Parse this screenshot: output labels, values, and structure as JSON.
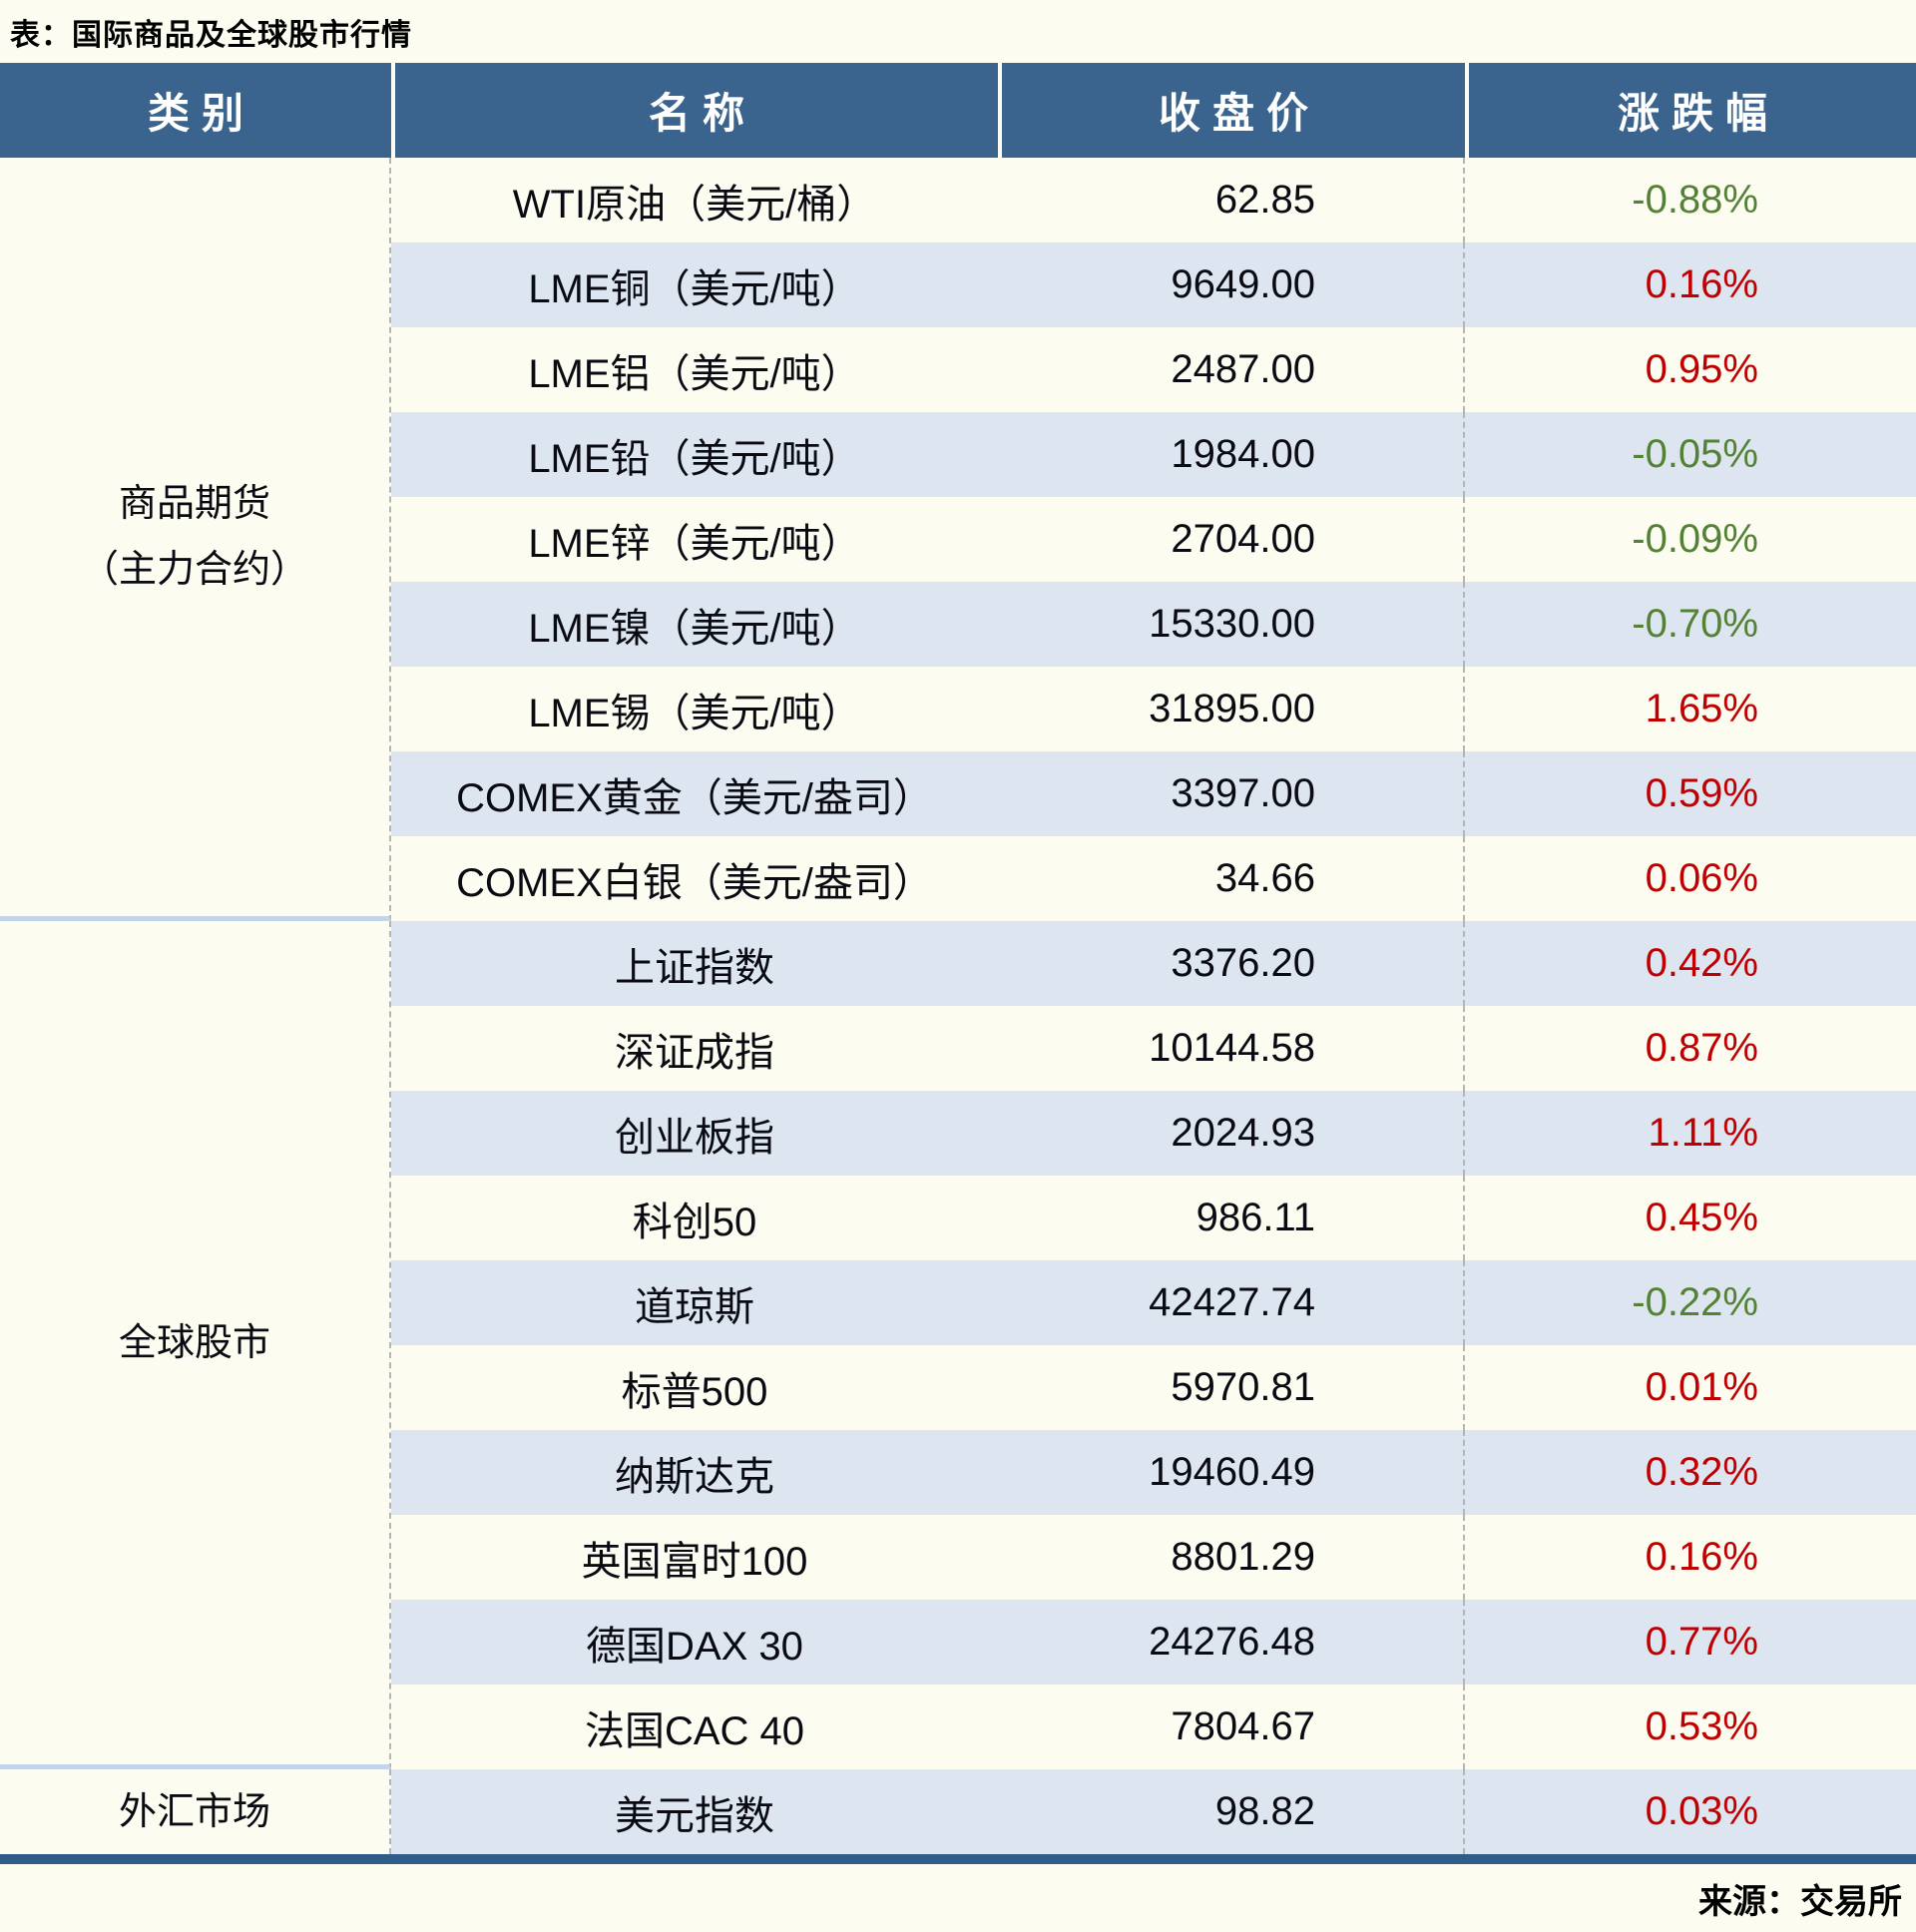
{
  "chart_data": {
    "type": "table",
    "title": "表：国际商品及全球股市行情",
    "columns": [
      "类别",
      "名称",
      "收盘价",
      "涨跌幅"
    ],
    "sections": [
      {
        "category_lines": [
          "商品期货",
          "（主力合约）"
        ],
        "rows": [
          {
            "name": "WTI原油（美元/桶）",
            "close": "62.85",
            "change": "-0.88%",
            "direction": "down"
          },
          {
            "name": "LME铜（美元/吨）",
            "close": "9649.00",
            "change": "0.16%",
            "direction": "up"
          },
          {
            "name": "LME铝（美元/吨）",
            "close": "2487.00",
            "change": "0.95%",
            "direction": "up"
          },
          {
            "name": "LME铅（美元/吨）",
            "close": "1984.00",
            "change": "-0.05%",
            "direction": "down"
          },
          {
            "name": "LME锌（美元/吨）",
            "close": "2704.00",
            "change": "-0.09%",
            "direction": "down"
          },
          {
            "name": "LME镍（美元/吨）",
            "close": "15330.00",
            "change": "-0.70%",
            "direction": "down"
          },
          {
            "name": "LME锡（美元/吨）",
            "close": "31895.00",
            "change": "1.65%",
            "direction": "up"
          },
          {
            "name": "COMEX黄金（美元/盎司）",
            "close": "3397.00",
            "change": "0.59%",
            "direction": "up"
          },
          {
            "name": "COMEX白银（美元/盎司）",
            "close": "34.66",
            "change": "0.06%",
            "direction": "up"
          }
        ]
      },
      {
        "category_lines": [
          "全球股市"
        ],
        "rows": [
          {
            "name": "上证指数",
            "close": "3376.20",
            "change": "0.42%",
            "direction": "up"
          },
          {
            "name": "深证成指",
            "close": "10144.58",
            "change": "0.87%",
            "direction": "up"
          },
          {
            "name": "创业板指",
            "close": "2024.93",
            "change": "1.11%",
            "direction": "up"
          },
          {
            "name": "科创50",
            "close": "986.11",
            "change": "0.45%",
            "direction": "up"
          },
          {
            "name": "道琼斯",
            "close": "42427.74",
            "change": "-0.22%",
            "direction": "down"
          },
          {
            "name": "标普500",
            "close": "5970.81",
            "change": "0.01%",
            "direction": "up"
          },
          {
            "name": "纳斯达克",
            "close": "19460.49",
            "change": "0.32%",
            "direction": "up"
          },
          {
            "name": "英国富时100",
            "close": "8801.29",
            "change": "0.16%",
            "direction": "up"
          },
          {
            "name": "德国DAX 30",
            "close": "24276.48",
            "change": "0.77%",
            "direction": "up"
          },
          {
            "name": "法国CAC 40",
            "close": "7804.67",
            "change": "0.53%",
            "direction": "up"
          }
        ]
      },
      {
        "category_lines": [
          "外汇市场"
        ],
        "rows": [
          {
            "name": "美元指数",
            "close": "98.82",
            "change": "0.03%",
            "direction": "up"
          }
        ]
      }
    ],
    "source": "来源：交易所",
    "layout": {
      "striped": true,
      "stripe_start": "plain",
      "negative_color_meaning": "green-down",
      "positive_color_meaning": "red-up"
    }
  },
  "colors": {
    "page_bg": "#FCFCF1",
    "header_bg": "#3A648E",
    "alt_row_bg": "#DCE5F0",
    "bottom_border": "#2F5C88",
    "section_divider": "#C5D5E8",
    "column_dash": "#B5B5B5",
    "up_red": "#C00000",
    "down_green": "#548235",
    "header_text": "#FFFFFF",
    "body_text": "#0A0A12"
  }
}
